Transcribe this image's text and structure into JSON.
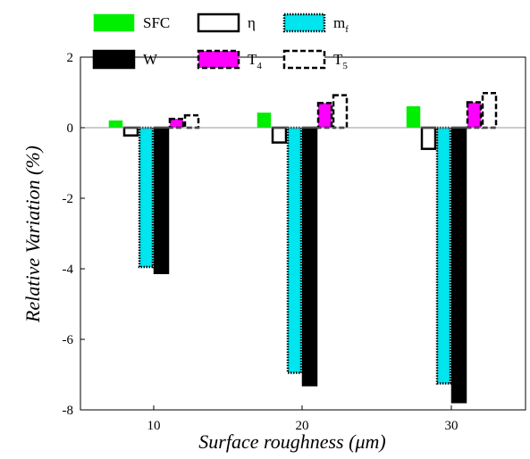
{
  "chart_data": {
    "type": "bar",
    "title": "",
    "xlabel": "Surface roughness (μm)",
    "ylabel": "Relative Variation (%)",
    "categories": [
      "10",
      "20",
      "30"
    ],
    "ylim": [
      -8,
      2
    ],
    "yticks": [
      "2",
      "0",
      "-2",
      "-4",
      "-6",
      "-8"
    ],
    "grid": false,
    "legend_placement": "top, above axes",
    "series": [
      {
        "name": "SFC",
        "legend_main": "SFC",
        "legend_sub": "",
        "values": [
          0.2,
          0.42,
          0.6
        ],
        "fill": "#00ee00",
        "stroke": "#00ee00",
        "dash": "none"
      },
      {
        "name": "η",
        "legend_main": "η",
        "legend_sub": "",
        "values": [
          -0.22,
          -0.42,
          -0.6
        ],
        "fill": "#ffffff",
        "stroke": "#000000",
        "dash": "solid"
      },
      {
        "name": "mf",
        "legend_main": "m",
        "legend_sub": "f",
        "values": [
          -3.95,
          -6.95,
          -7.25
        ],
        "fill": "#00e5ee",
        "stroke": "#000000",
        "dash": "dotted"
      },
      {
        "name": "W",
        "legend_main": "W",
        "legend_sub": "",
        "values": [
          -4.12,
          -7.3,
          -7.78
        ],
        "fill": "#000000",
        "stroke": "#000000",
        "dash": "solid"
      },
      {
        "name": "T4",
        "legend_main": "T",
        "legend_sub": "4",
        "values": [
          0.25,
          0.7,
          0.72
        ],
        "fill": "#ff00ff",
        "stroke": "#000000",
        "dash": "dashed"
      },
      {
        "name": "T5",
        "legend_main": "T",
        "legend_sub": "5",
        "values": [
          0.35,
          0.92,
          0.98
        ],
        "fill": "#ffffff",
        "stroke": "#000000",
        "dash": "dashed"
      }
    ]
  }
}
